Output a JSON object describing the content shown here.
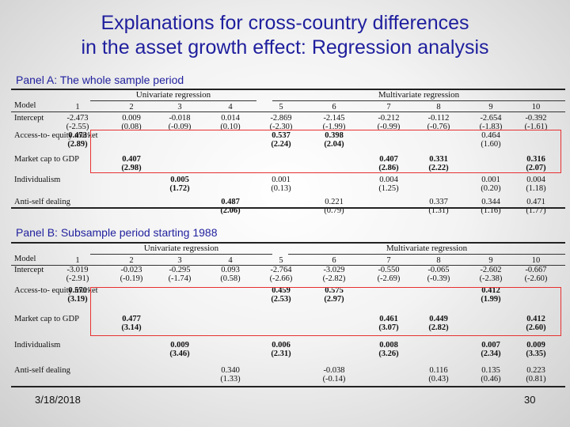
{
  "slide": {
    "title_line1": "Explanations for cross-country differences",
    "title_line2": "in the asset growth effect: Regression analysis",
    "date": "3/18/2018",
    "page_number": "30"
  },
  "colors": {
    "title": "#1f1f9e",
    "highlight_box": "#e83030"
  },
  "panels": [
    {
      "label": "Panel A: The whole sample period",
      "group_uni": "Univariate regression",
      "group_multi": "Multivariate regression",
      "header": "Model",
      "model_numbers": [
        "1",
        "2",
        "3",
        "4",
        "5",
        "6",
        "7",
        "8",
        "9",
        "10"
      ],
      "rows": [
        {
          "label": "Intercept",
          "coef": [
            "-2.473",
            "0.009",
            "-0.018",
            "0.014",
            "-2.869",
            "-2.145",
            "-0.212",
            "-0.112",
            "-2.654",
            "-0.392"
          ],
          "tstat": [
            "(-2.55)",
            "(0.08)",
            "(-0.09)",
            "(0.10)",
            "(-2.30)",
            "(-1.99)",
            "(-0.99)",
            "(-0.76)",
            "(-1.83)",
            "(-1.61)"
          ],
          "bold": [
            false,
            false,
            false,
            false,
            false,
            false,
            false,
            false,
            false,
            false
          ]
        },
        {
          "label": "Access-to- equity market",
          "coef": [
            "0.473",
            "",
            "",
            "",
            "0.537",
            "0.398",
            "",
            "",
            "0.464",
            ""
          ],
          "tstat": [
            "(2.89)",
            "",
            "",
            "",
            "(2.24)",
            "(2.04)",
            "",
            "",
            "(1.60)",
            ""
          ],
          "bold": [
            true,
            false,
            false,
            false,
            true,
            true,
            false,
            false,
            false,
            false
          ]
        },
        {
          "label": "Market cap to GDP",
          "coef": [
            "",
            "0.407",
            "",
            "",
            "",
            "",
            "0.407",
            "0.331",
            "",
            "0.316"
          ],
          "tstat": [
            "",
            "(2.98)",
            "",
            "",
            "",
            "",
            "(2.86)",
            "(2.22)",
            "",
            "(2.07)"
          ],
          "bold": [
            false,
            true,
            false,
            false,
            false,
            false,
            true,
            true,
            false,
            true
          ]
        },
        {
          "label": "Individualism",
          "coef": [
            "",
            "",
            "0.005",
            "",
            "0.001",
            "",
            "0.004",
            "",
            "0.001",
            "0.004"
          ],
          "tstat": [
            "",
            "",
            "(1.72)",
            "",
            "(0.13)",
            "",
            "(1.25)",
            "",
            "(0.20)",
            "(1.18)"
          ],
          "bold": [
            false,
            false,
            true,
            false,
            false,
            false,
            false,
            false,
            false,
            false
          ]
        },
        {
          "label": "Anti-self dealing",
          "coef": [
            "",
            "",
            "",
            "0.487",
            "",
            "0.221",
            "",
            "0.337",
            "0.344",
            "0.471"
          ],
          "tstat": [
            "",
            "",
            "",
            "(2.06)",
            "",
            "(0.79)",
            "",
            "(1.31)",
            "(1.16)",
            "(1.77)"
          ],
          "bold": [
            false,
            false,
            false,
            true,
            false,
            false,
            false,
            false,
            false,
            false
          ]
        }
      ]
    },
    {
      "label": "Panel B: Subsample period starting 1988",
      "group_uni": "Univariate regression",
      "group_multi": "Multivariate regression",
      "header": "Model",
      "model_numbers": [
        "1",
        "2",
        "3",
        "4",
        "5",
        "6",
        "7",
        "8",
        "9",
        "10"
      ],
      "rows": [
        {
          "label": "Intercept",
          "coef": [
            "-3.019",
            "-0.023",
            "-0.295",
            "0.093",
            "-2.764",
            "-3.029",
            "-0.550",
            "-0.065",
            "-2.602",
            "-0.667"
          ],
          "tstat": [
            "(-2.91)",
            "(-0.19)",
            "(-1.74)",
            "(0.58)",
            "(-2.66)",
            "(-2.82)",
            "(-2.69)",
            "(-0.39)",
            "(-2.38)",
            "(-2.60)"
          ],
          "bold": [
            false,
            false,
            false,
            false,
            false,
            false,
            false,
            false,
            false,
            false
          ]
        },
        {
          "label": "Access-to- equity market",
          "coef": [
            "0.570",
            "",
            "",
            "",
            "0.459",
            "0.575",
            "",
            "",
            "0.412",
            ""
          ],
          "tstat": [
            "(3.19)",
            "",
            "",
            "",
            "(2.53)",
            "(2.97)",
            "",
            "",
            "(1.99)",
            ""
          ],
          "bold": [
            true,
            false,
            false,
            false,
            true,
            true,
            false,
            false,
            true,
            false
          ]
        },
        {
          "label": "Market cap to GDP",
          "coef": [
            "",
            "0.477",
            "",
            "",
            "",
            "",
            "0.461",
            "0.449",
            "",
            "0.412"
          ],
          "tstat": [
            "",
            "(3.14)",
            "",
            "",
            "",
            "",
            "(3.07)",
            "(2.82)",
            "",
            "(2.60)"
          ],
          "bold": [
            false,
            true,
            false,
            false,
            false,
            false,
            true,
            true,
            false,
            true
          ]
        },
        {
          "label": "Individualism",
          "coef": [
            "",
            "",
            "0.009",
            "",
            "0.006",
            "",
            "0.008",
            "",
            "0.007",
            "0.009"
          ],
          "tstat": [
            "",
            "",
            "(3.46)",
            "",
            "(2.31)",
            "",
            "(3.26)",
            "",
            "(2.34)",
            "(3.35)"
          ],
          "bold": [
            false,
            false,
            true,
            false,
            true,
            false,
            true,
            false,
            true,
            true
          ]
        },
        {
          "label": "Anti-self dealing",
          "coef": [
            "",
            "",
            "",
            "0.340",
            "",
            "-0.038",
            "",
            "0.116",
            "0.135",
            "0.223"
          ],
          "tstat": [
            "",
            "",
            "",
            "(1.33)",
            "",
            "(-0.14)",
            "",
            "(0.43)",
            "(0.46)",
            "(0.81)"
          ],
          "bold": [
            false,
            false,
            false,
            false,
            false,
            false,
            false,
            false,
            false,
            false
          ]
        }
      ]
    }
  ]
}
